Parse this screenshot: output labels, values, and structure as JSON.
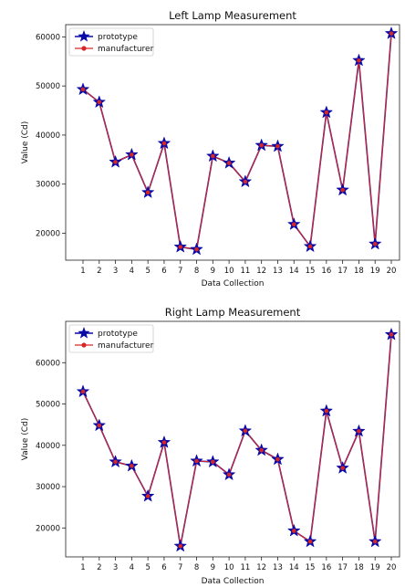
{
  "chart_data": [
    {
      "type": "line",
      "title": "Left Lamp Measurement",
      "xlabel": "Data Collection",
      "ylabel": "Value (Cd)",
      "x": [
        1,
        2,
        3,
        4,
        5,
        6,
        7,
        8,
        9,
        10,
        11,
        12,
        13,
        14,
        15,
        16,
        17,
        18,
        19,
        20
      ],
      "ylim": [
        14500,
        62500
      ],
      "yticks": [
        20000,
        30000,
        40000,
        50000,
        60000
      ],
      "grid": false,
      "legend": "top-left",
      "series": [
        {
          "name": "prototype",
          "marker": "star",
          "color": "#0a0aa8",
          "values": [
            49300,
            46700,
            34500,
            36000,
            28300,
            38300,
            17200,
            16700,
            35700,
            34300,
            30500,
            37900,
            37700,
            21800,
            17300,
            44600,
            28800,
            55200,
            17800,
            60700
          ]
        },
        {
          "name": "manufacturer",
          "marker": "circle",
          "color": "#d62728",
          "values": [
            49300,
            46700,
            34500,
            36000,
            28300,
            38300,
            17200,
            16700,
            35700,
            34300,
            30500,
            37900,
            37700,
            21800,
            17300,
            44600,
            28800,
            55200,
            17800,
            60700
          ]
        }
      ]
    },
    {
      "type": "line",
      "title": "Right Lamp Measurement",
      "xlabel": "Data Collection",
      "ylabel": "Value (Cd)",
      "x": [
        1,
        2,
        3,
        4,
        5,
        6,
        7,
        8,
        9,
        10,
        11,
        12,
        13,
        14,
        15,
        16,
        17,
        18,
        19,
        20
      ],
      "ylim": [
        13000,
        70000
      ],
      "yticks": [
        20000,
        30000,
        40000,
        50000,
        60000
      ],
      "grid": false,
      "legend": "top-left",
      "series": [
        {
          "name": "prototype",
          "marker": "star",
          "color": "#0a0aa8",
          "values": [
            53000,
            44800,
            36000,
            35000,
            27700,
            40700,
            15600,
            36200,
            36000,
            32900,
            43500,
            38800,
            36600,
            19300,
            16700,
            48300,
            34500,
            43400,
            16700,
            66800
          ]
        },
        {
          "name": "manufacturer",
          "marker": "circle",
          "color": "#d62728",
          "values": [
            53000,
            44800,
            36000,
            35000,
            27700,
            40700,
            15600,
            36200,
            36000,
            32900,
            43500,
            38800,
            36600,
            19300,
            16700,
            48300,
            34500,
            43400,
            16700,
            66800
          ]
        }
      ]
    }
  ]
}
